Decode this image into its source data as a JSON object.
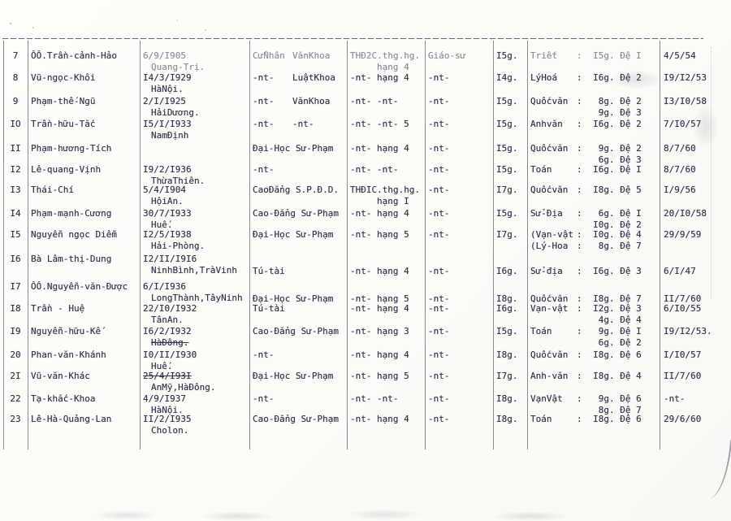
{
  "style": {
    "ink_color": "#34344e",
    "paper_color": "#fcfcfa",
    "line_color": "#30304860"
  },
  "table": {
    "rows": [
      {
        "num": "7",
        "fade": [
          "dob",
          "edu",
          "exam",
          "prof",
          "subj"
        ],
        "name": [
          "ÔÔ.Trần-cảnh-Hảo"
        ],
        "dob": [
          "6/9/I905",
          {
            "t": "Quang-Trị.",
            "indent": 1
          }
        ],
        "edu": [
          {
            "a": "CửNhân",
            "b": "VănKhoa"
          }
        ],
        "exam": [
          {
            "t": "THĐ2C.thg.hg."
          },
          {
            "b": "hạng 4"
          }
        ],
        "prof": [
          "Giáo-sư"
        ],
        "hours": [
          "I5g."
        ],
        "subj": [
          {
            "s": "Triết",
            "h": "I5g.",
            "d": "Đệ I"
          }
        ],
        "date": [
          "4/5/54"
        ]
      },
      {
        "num": "8",
        "name": [
          "Vũ-ngọc-Khôi"
        ],
        "dob": [
          "I4/3/I929",
          {
            "t": "HàNội.",
            "indent": 1
          }
        ],
        "edu": [
          {
            "a": "-nt-",
            "b": "LuậtKhoa"
          }
        ],
        "exam": [
          {
            "a": "-nt-",
            "b": "hạng 4"
          }
        ],
        "prof": [
          "-nt-"
        ],
        "hours": [
          "I4g."
        ],
        "subj": [
          {
            "s": "LýHoá",
            "h": "I6g.",
            "d": "Đệ 2"
          }
        ],
        "date": [
          "I9/I2/53"
        ]
      },
      {
        "num": "9",
        "name": [
          "Phạm-thế-Ngũ"
        ],
        "dob": [
          "2/I/I925",
          {
            "t": "HảiDương.",
            "indent": 1
          }
        ],
        "edu": [
          {
            "a": "-nt-",
            "b": "VănKhoa"
          }
        ],
        "exam": [
          {
            "a": "-nt-",
            "b": "-nt-"
          }
        ],
        "prof": [
          "-nt-"
        ],
        "hours": [
          "I5g."
        ],
        "subj": [
          {
            "s": "Quốcvăn",
            "h": "8g.",
            "d": "Đệ 2"
          },
          {
            "h": "9g.",
            "d": "Đệ 3"
          }
        ],
        "date": [
          "I3/I0/58"
        ]
      },
      {
        "num": "IO",
        "name": [
          "Trần-hữu-Tắc"
        ],
        "dob": [
          "I5/I/I933",
          {
            "t": "NamĐịnh",
            "indent": 1
          }
        ],
        "edu": [
          {
            "a": "-nt-",
            "b": "-nt-"
          }
        ],
        "exam": [
          {
            "a": "-nt-",
            "b": "-nt-",
            "c": "5"
          }
        ],
        "prof": [
          "-nt-"
        ],
        "hours": [
          "I5g."
        ],
        "subj": [
          {
            "s": "Anhvăn",
            "h": "I6g.",
            "d": "Đệ 2"
          }
        ],
        "date": [
          "7/I0/57"
        ]
      },
      {
        "num": "II",
        "name": [
          "Phạm-hương-Tích"
        ],
        "dob": [],
        "edu": [
          "Đại-Học Sư-Phạm"
        ],
        "exam": [
          {
            "a": "-nt-",
            "b": "hạng 4"
          }
        ],
        "prof": [
          "-nt-"
        ],
        "hours": [
          "I5g."
        ],
        "subj": [
          {
            "s": "Quốcvăn",
            "h": "9g.",
            "d": "Đệ 2"
          },
          {
            "h": "6g.",
            "d": "Đệ 3"
          }
        ],
        "date": [
          "8/7/60"
        ]
      },
      {
        "num": "I2",
        "name": [
          "Lê-quang-Vịnh"
        ],
        "dob": [
          "I9/2/I936",
          {
            "t": "ThừaThiên.",
            "indent": 1
          }
        ],
        "edu": [
          "-nt-"
        ],
        "exam": [
          {
            "a": "-nt-",
            "b": "-nt-"
          }
        ],
        "prof": [
          "-nt-"
        ],
        "hours": [
          "I5g."
        ],
        "subj": [
          {
            "s": "Toán",
            "h": "I6g.",
            "d": "Đệ I"
          }
        ],
        "date": [
          "8/7/60"
        ]
      },
      {
        "num": "I3",
        "name": [
          "Thái-Chí"
        ],
        "dob": [
          "5/4/I904",
          {
            "t": "HộiAn.",
            "indent": 1
          }
        ],
        "edu": [
          "CaoĐẳng S.P.Đ.D."
        ],
        "exam": [
          {
            "t": "THĐIC.thg.hg."
          },
          {
            "b": "hạng I"
          }
        ],
        "prof": [
          "-nt-"
        ],
        "hours": [
          "I7g."
        ],
        "subj": [
          {
            "s": "Quốcvăn",
            "h": "I8g.",
            "d": "Đệ 5"
          }
        ],
        "date": [
          "I/9/56"
        ]
      },
      {
        "num": "I4",
        "name": [
          "Phạm-mạnh-Cương"
        ],
        "dob": [
          "30/7/I933",
          {
            "t": "Huế.",
            "indent": 1
          }
        ],
        "edu": [
          "Cao-Đẳng Sư-Phạm"
        ],
        "exam": [
          {
            "a": "-nt-",
            "b": "hạng 4"
          }
        ],
        "prof": [
          "-nt-"
        ],
        "hours": [
          "I5g."
        ],
        "subj": [
          {
            "s": "Sử-Địa",
            "h": "6g.",
            "d": "Đệ I"
          },
          {
            "h": "I0g.",
            "d": "Đệ 2"
          }
        ],
        "date": [
          "20/I0/58"
        ]
      },
      {
        "num": "I5",
        "name": [
          "Nguyễn ngọc Diễm"
        ],
        "dob": [
          "I2/5/I938",
          {
            "t": "Hải-Phòng.",
            "indent": 1
          }
        ],
        "edu": [
          "Đại-Học Sư-Phạm"
        ],
        "exam": [
          {
            "a": "-nt-",
            "b": "hạng 5"
          }
        ],
        "prof": [
          "-nt-"
        ],
        "hours": [
          "I7g."
        ],
        "subj": [
          {
            "s": "(Vạn-vật",
            "h": "I0g.",
            "d": "Đệ 4"
          },
          {
            "s": "(Lý-Hoa",
            "h": "8g.",
            "d": "Đệ 7"
          }
        ],
        "date": [
          "29/9/59"
        ]
      },
      {
        "num": "I6",
        "rshift": 1,
        "name": [
          "Bà Lâm-thị-Dung"
        ],
        "dob": [
          "I2/II/I9I6",
          {
            "t": "NinhBình,TràVinh",
            "indent": 1
          }
        ],
        "edu": [
          "Tú-tài"
        ],
        "exam": [
          {
            "a": "-nt-",
            "b": "hạng 4"
          }
        ],
        "prof": [
          "-nt-"
        ],
        "hours": [
          "I6g."
        ],
        "subj": [
          {
            "s": "Sử-địa",
            "h": "I6g.",
            "d": "Đệ 3"
          }
        ],
        "date": [
          "6/I/47"
        ]
      },
      {
        "num": "I7",
        "rshift": 1,
        "name": [
          "ÔÔ.Nguyễn-văn-Được"
        ],
        "dob": [
          "6/I/I936",
          {
            "t": "LongThành,TâyNinh",
            "indent": 1
          }
        ],
        "edu": [
          "Đại-Học Sư-Phạm"
        ],
        "exam": [
          {
            "a": "-nt-",
            "b": "hạng 5"
          }
        ],
        "prof": [
          "-nt-"
        ],
        "hours": [
          "I8g."
        ],
        "subj": [
          {
            "s": "Quốcvăn",
            "h": "I8g.",
            "d": "Đệ 7"
          }
        ],
        "date": [
          "II/7/60"
        ]
      },
      {
        "num": "I8",
        "name": [
          "Trần - Huệ"
        ],
        "dob": [
          "22/I0/I932",
          {
            "t": "TânAn.",
            "indent": 1
          }
        ],
        "edu": [
          "Tú-tài"
        ],
        "exam": [
          {
            "a": "-nt-",
            "b": "hạng 4"
          }
        ],
        "prof": [
          "-nt-"
        ],
        "hours": [
          "I6g."
        ],
        "subj": [
          {
            "s": "Vạn-vật",
            "h": "I2g.",
            "d": "Đệ 3"
          },
          {
            "h": "4g.",
            "d": "Đệ 4"
          }
        ],
        "date": [
          "6/I0/55"
        ]
      },
      {
        "num": "I9",
        "name": [
          "Nguyễn-hữu-Kế"
        ],
        "dob": [
          "I6/2/I932",
          {
            "t": "HàĐông.",
            "indent": 1,
            "strike": 1
          }
        ],
        "edu": [
          "Cao-Đẳng Sư-Phạm"
        ],
        "exam": [
          {
            "a": "-nt-",
            "b": "hạng 3"
          }
        ],
        "prof": [
          "-nt-"
        ],
        "hours": [
          "I5g."
        ],
        "subj": [
          {
            "s": "Toán",
            "h": "9g.",
            "d": "Đệ I"
          },
          {
            "h": "6g.",
            "d": "Đệ 2"
          }
        ],
        "date": [
          "I9/I2/53."
        ]
      },
      {
        "num": "20",
        "name": [
          "Phan-văn-Khánh"
        ],
        "dob": [
          "I0/II/I930",
          {
            "t": "Huế.",
            "indent": 1
          }
        ],
        "edu": [
          "-nt-"
        ],
        "exam": [
          {
            "a": "-nt-",
            "b": "hạng 4"
          }
        ],
        "prof": [
          "-nt-"
        ],
        "hours": [
          "I8g."
        ],
        "subj": [
          {
            "s": "Quốcvăn",
            "h": "I8g.",
            "d": "Đệ 6"
          }
        ],
        "date": [
          "I/I0/57"
        ]
      },
      {
        "num": "2I",
        "name": [
          "Vũ-văn-Khác"
        ],
        "dob": [
          {
            "t": "25/4/I93I",
            "strike": 1
          },
          {
            "t": "AnMỹ,HàĐông.",
            "indent": 1
          }
        ],
        "edu": [
          "Đại-Học Sư-Phạm"
        ],
        "exam": [
          {
            "a": "-nt-",
            "b": "hạng 5"
          }
        ],
        "prof": [
          "-nt-"
        ],
        "hours": [
          "I7g."
        ],
        "subj": [
          {
            "s": "Anh-văn",
            "h": "I8g.",
            "d": "Đệ 4"
          }
        ],
        "date": [
          "II/7/60"
        ]
      },
      {
        "num": "22",
        "name": [
          "Tạ-khắc-Khoa"
        ],
        "dob": [
          "4/9/I937",
          {
            "t": "HàNội.",
            "indent": 1
          }
        ],
        "edu": [
          "-nt-"
        ],
        "exam": [
          {
            "a": "-nt-",
            "b": "-nt-"
          }
        ],
        "prof": [
          "-nt-"
        ],
        "hours": [
          "I8g."
        ],
        "subj": [
          {
            "s": "VạnVật",
            "h": "9g.",
            "d": "Đệ 6"
          },
          {
            "h": "8g.",
            "d": "Đệ 7"
          }
        ],
        "date": [
          "-nt-"
        ]
      },
      {
        "num": "23",
        "name": [
          "Lê-Hà-Quảng-Lan"
        ],
        "dob": [
          "II/2/I935",
          {
            "t": "Cholon.",
            "indent": 1
          }
        ],
        "edu": [
          "Cao-Đẳng Sư-Phạm"
        ],
        "exam": [
          {
            "a": "-nt-",
            "b": "hạng 4"
          }
        ],
        "prof": [
          "-nt-"
        ],
        "hours": [
          "I8g."
        ],
        "subj": [
          {
            "s": "Toán",
            "h": "I8g.",
            "d": "Đệ 6"
          }
        ],
        "date": [
          "29/6/60"
        ]
      }
    ]
  }
}
